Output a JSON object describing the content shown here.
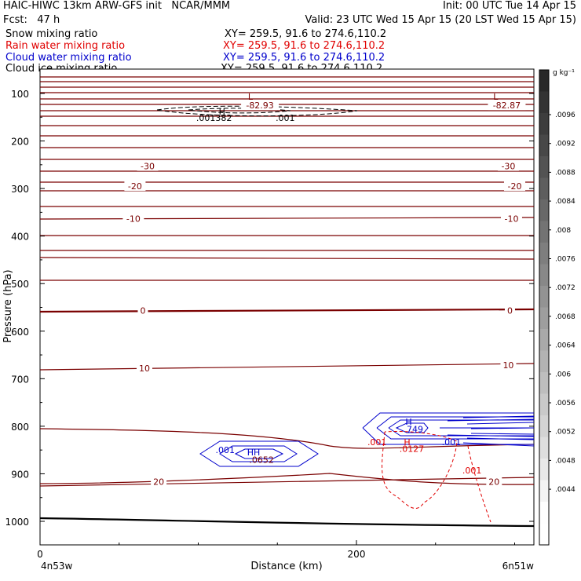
{
  "header": {
    "title": "HAIC-HIWC 13km ARW-GFS init   NCAR/MMM",
    "init": "Init: 00 UTC Tue 14 Apr 15",
    "fcst": "Fcst:   47 h",
    "valid": "Valid: 23 UTC Wed 15 Apr 15 (20 LST Wed 15 Apr 15)"
  },
  "legend": [
    {
      "name": "Snow mixing ratio",
      "xy": "XY= 259.5, 91.6 to 274.6,110.2",
      "color": "#000000"
    },
    {
      "name": "Rain water mixing ratio",
      "xy": "XY= 259.5, 91.6 to 274.6,110.2",
      "color": "#e00000"
    },
    {
      "name": "Cloud water mixing ratio",
      "xy": "XY= 259.5, 91.6 to 274.6,110.2",
      "color": "#0000cc"
    },
    {
      "name": "Cloud ice mixing ratio",
      "xy": "XY= 259.5, 91.6 to 274.6,110.2",
      "color": "#000000"
    }
  ],
  "chart_data": {
    "type": "cross-section",
    "xlabel": "Distance (km)",
    "ylabel": "Pressure (hPa)",
    "x_ticks": [
      0,
      200
    ],
    "y_ticks": [
      100,
      200,
      300,
      400,
      500,
      600,
      700,
      800,
      900,
      1000
    ],
    "x_end_labels": [
      "4n53w",
      "6n51w"
    ],
    "colorbar": {
      "unit": "g kg⁻¹",
      "ticks": [
        ".0096",
        ".0092",
        ".0088",
        ".0084",
        ".008",
        ".0076",
        ".0072",
        ".0068",
        ".0064",
        ".006",
        ".0056",
        ".0052",
        ".0048",
        ".0044"
      ]
    },
    "temperature_labels": [
      {
        "text": "-82.93",
        "x": 139,
        "p": 125
      },
      {
        "text": "-82.87",
        "x": 295,
        "p": 125
      },
      {
        "text": "-30",
        "x": 68,
        "p": 253
      },
      {
        "text": "-30",
        "x": 296,
        "p": 253
      },
      {
        "text": "-20",
        "x": 60,
        "p": 295
      },
      {
        "text": "-20",
        "x": 300,
        "p": 295
      },
      {
        "text": "-10",
        "x": 59,
        "p": 363
      },
      {
        "text": "-10",
        "x": 298,
        "p": 363
      },
      {
        "text": "0",
        "x": 65,
        "p": 557
      },
      {
        "text": "0",
        "x": 297,
        "p": 557
      },
      {
        "text": "10",
        "x": 66,
        "p": 678
      },
      {
        "text": "10",
        "x": 296,
        "p": 671
      },
      {
        "text": "20",
        "x": 75,
        "p": 917
      },
      {
        "text": "20",
        "x": 287,
        "p": 917
      }
    ],
    "extremum_labels": [
      {
        "text": "L",
        "x": 133,
        "p": 107,
        "color": "#7a0000"
      },
      {
        "text": "L",
        "x": 288,
        "p": 107,
        "color": "#7a0000"
      },
      {
        "text": "H",
        "x": 115,
        "p": 138,
        "color": "#000000"
      },
      {
        "text": ".001382",
        "x": 110,
        "p": 151,
        "color": "#000000"
      },
      {
        "text": ".001",
        "x": 155,
        "p": 151,
        "color": "#000000"
      },
      {
        "text": "H",
        "x": 233,
        "p": 790,
        "color": "#0000cc"
      },
      {
        "text": "749",
        "x": 237,
        "p": 806,
        "color": "#0000cc"
      },
      {
        "text": "H",
        "x": 232,
        "p": 833,
        "color": "#e00000"
      },
      {
        "text": ".0127",
        "x": 235,
        "p": 847,
        "color": "#e00000"
      },
      {
        "text": ".001",
        "x": 213,
        "p": 833,
        "color": "#e00000"
      },
      {
        "text": ".001",
        "x": 260,
        "p": 833,
        "color": "#0000cc"
      },
      {
        "text": ".001",
        "x": 273,
        "p": 893,
        "color": "#e00000"
      },
      {
        "text": ".001",
        "x": 117,
        "p": 850,
        "color": "#0000cc"
      },
      {
        "text": "HH",
        "x": 135,
        "p": 855,
        "color": "#0000cc"
      },
      {
        "text": ".0652",
        "x": 140,
        "p": 870,
        "color": "#7a0000"
      }
    ]
  }
}
